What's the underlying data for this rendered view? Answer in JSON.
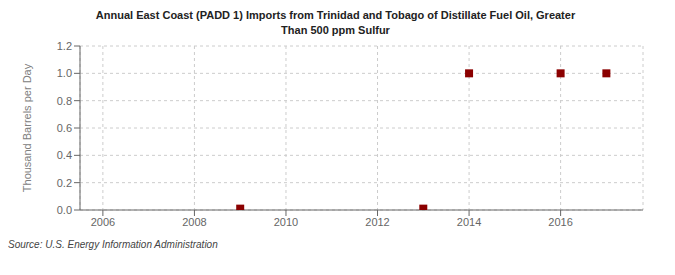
{
  "chart_data": {
    "type": "scatter",
    "title": "Annual East Coast (PADD 1) Imports from Trinidad and Tobago of Distillate Fuel Oil, Greater\nThan 500 ppm Sulfur",
    "ylabel": "Thousand Barrels per Day",
    "source": "Source: U.S. Energy Information Administration",
    "x": [
      2009,
      2013,
      2014,
      2016,
      2017
    ],
    "values": [
      0.01,
      0.01,
      1.0,
      1.0,
      1.0
    ],
    "color": "#8b0000",
    "marker": "square",
    "xlim": [
      2005.5,
      2017.8
    ],
    "ylim": [
      0.0,
      1.2
    ],
    "xticks": [
      2006,
      2008,
      2010,
      2012,
      2014,
      2016
    ],
    "yticks": [
      {
        "value": 0.0,
        "label": "0.0"
      },
      0.2,
      0.4,
      0.6,
      0.8,
      {
        "value": 1.0,
        "label": "1.0"
      },
      1.2
    ],
    "grid": true
  }
}
